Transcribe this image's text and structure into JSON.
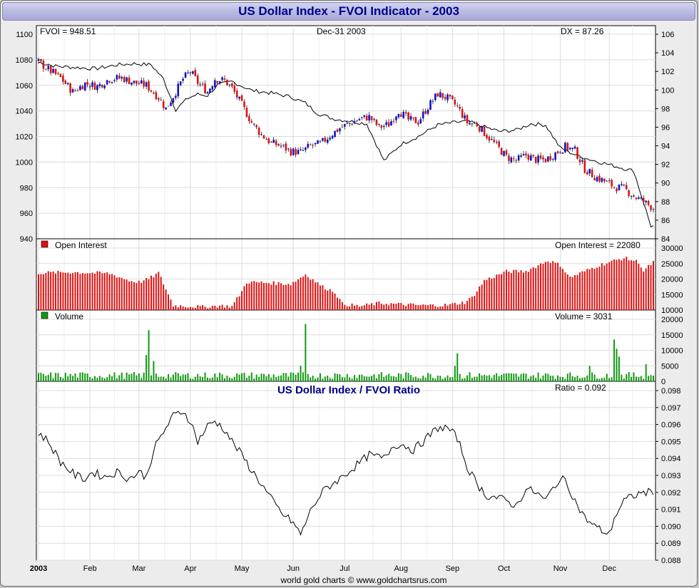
{
  "header": {
    "title": "US Dollar Index - FVOI Indicator - 2003"
  },
  "footer": {
    "credit": "world gold charts © www.goldchartsrus.com"
  },
  "panels": {
    "price": {
      "left_label": "FVOI = 948.51",
      "center_label": "Dec-31  2003",
      "right_label": "DX = 87.26"
    },
    "open_interest": {
      "legend": "Open Interest",
      "readout": "Open Interest = 22080"
    },
    "volume": {
      "legend": "Volume",
      "readout": "Volume = 3031"
    },
    "ratio": {
      "title": "US Dollar Index / FVOI Ratio",
      "readout": "Ratio = 0.092"
    }
  },
  "colors": {
    "up": "#1111cc",
    "down": "#dd1111",
    "oi": "#dd1111",
    "volume": "#119911",
    "line": "#000000",
    "grid": "#dcdcdc",
    "title": "#00008b"
  },
  "chart_data": [
    {
      "type": "line",
      "title": "US Dollar Index - FVOI Indicator - 2003",
      "x_ticks": [
        "2003",
        "Feb",
        "Mar",
        "Apr",
        "May",
        "Jun",
        "Jul",
        "Aug",
        "Sep",
        "Oct",
        "Nov",
        "Dec"
      ],
      "left_axis": {
        "ylim": [
          940,
          1100
        ],
        "ticks": [
          940,
          960,
          980,
          1000,
          1020,
          1040,
          1060,
          1080,
          1100
        ]
      },
      "right_axis": {
        "ylim": [
          84,
          106
        ],
        "ticks": [
          84,
          86,
          88,
          90,
          92,
          94,
          96,
          98,
          100,
          102,
          104,
          106
        ]
      },
      "series": [
        {
          "name": "FVOI",
          "axis": "left",
          "style": "line",
          "x": [
            1,
            8,
            16,
            24,
            33,
            40,
            47,
            52,
            57,
            62,
            66,
            70,
            74,
            80,
            88,
            96,
            104,
            110,
            115,
            121,
            128,
            135,
            142,
            149,
            156,
            164,
            171,
            176,
            182,
            189,
            196,
            202,
            208,
            214,
            221,
            228,
            236,
            244,
            251
          ],
          "values": [
            1078,
            1075,
            1074,
            1073,
            1076,
            1077,
            1076,
            1065,
            1041,
            1050,
            1053,
            1052,
            1060,
            1063,
            1056,
            1054,
            1051,
            1046,
            1038,
            1034,
            1032,
            1030,
            1001,
            1014,
            1020,
            1029,
            1031,
            1032,
            1028,
            1024,
            1025,
            1030,
            1029,
            1011,
            1005,
            1001,
            997,
            993,
            950
          ]
        },
        {
          "name": "DX",
          "axis": "right",
          "style": "candles",
          "x": [
            1,
            5,
            10,
            15,
            20,
            25,
            30,
            35,
            40,
            45,
            50,
            53,
            57,
            60,
            63,
            66,
            70,
            73,
            77,
            80,
            84,
            88,
            92,
            96,
            100,
            104,
            108,
            112,
            116,
            120,
            124,
            128,
            132,
            136,
            140,
            144,
            148,
            152,
            156,
            160,
            164,
            168,
            172,
            176,
            180,
            184,
            188,
            192,
            196,
            200,
            204,
            208,
            212,
            216,
            220,
            224,
            228,
            232,
            236,
            240,
            244,
            248,
            252
          ],
          "values": [
            103,
            102.2,
            101.3,
            99.8,
            100.7,
            100.4,
            101.2,
            101.3,
            100.8,
            100.5,
            99.2,
            98.0,
            99.8,
            101.2,
            102.0,
            100.8,
            99.8,
            101.2,
            101.0,
            100.2,
            98.4,
            96.5,
            95.2,
            94.3,
            94.0,
            93.4,
            93.3,
            94.0,
            94.2,
            95.1,
            95.9,
            96.4,
            96.9,
            97.1,
            96.0,
            96.3,
            97.8,
            96.8,
            96.6,
            98.2,
            99.6,
            99.1,
            98.2,
            96.5,
            96.3,
            95.1,
            94.0,
            92.8,
            92.4,
            93.0,
            92.5,
            92.5,
            93.2,
            93.9,
            93.5,
            91.5,
            90.7,
            90.2,
            89.6,
            89.4,
            88.6,
            88.0,
            87.3
          ]
        }
      ]
    },
    {
      "type": "bar",
      "title": "Open Interest",
      "ylim": [
        10000,
        30000
      ],
      "ticks": [
        10000,
        15000,
        20000,
        25000,
        30000
      ],
      "anchors_x": [
        1,
        15,
        30,
        38,
        42,
        46,
        50,
        56,
        68,
        75,
        80,
        84,
        86,
        95,
        104,
        110,
        117,
        122,
        125,
        132,
        140,
        150,
        158,
        168,
        175,
        178,
        183,
        192,
        200,
        209,
        214,
        218,
        230,
        240,
        246,
        248,
        252
      ],
      "anchors_y": [
        22000,
        22200,
        21800,
        19500,
        19000,
        20000,
        22000,
        11500,
        11000,
        11400,
        11200,
        16000,
        19000,
        18800,
        18400,
        21500,
        17500,
        15800,
        12000,
        11200,
        12200,
        11800,
        11500,
        11600,
        12500,
        14000,
        19500,
        22400,
        22500,
        26000,
        24500,
        20500,
        24500,
        26800,
        25500,
        22500,
        25500
      ]
    },
    {
      "type": "bar",
      "title": "Volume",
      "ylim": [
        0,
        20000
      ],
      "ticks": [
        0,
        5000,
        10000,
        15000,
        20000
      ],
      "base": [
        800,
        3000
      ],
      "spikes": [
        {
          "x": 45,
          "v": 8500
        },
        {
          "x": 46,
          "v": 16500
        },
        {
          "x": 48,
          "v": 6500
        },
        {
          "x": 110,
          "v": 18500
        },
        {
          "x": 108,
          "v": 5000
        },
        {
          "x": 172,
          "v": 9000
        },
        {
          "x": 171,
          "v": 5000
        },
        {
          "x": 236,
          "v": 13500
        },
        {
          "x": 237,
          "v": 10500
        },
        {
          "x": 238,
          "v": 8000
        },
        {
          "x": 226,
          "v": 5000
        },
        {
          "x": 249,
          "v": 5500
        }
      ]
    },
    {
      "type": "line",
      "title": "US Dollar Index / FVOI Ratio",
      "ylim": [
        0.088,
        0.098
      ],
      "ticks": [
        0.088,
        0.089,
        0.09,
        0.091,
        0.092,
        0.093,
        0.094,
        0.095,
        0.096,
        0.097,
        0.098
      ],
      "x": [
        1,
        5,
        10,
        16,
        20,
        23,
        28,
        33,
        38,
        42,
        45,
        48,
        53,
        56,
        60,
        63,
        66,
        70,
        73,
        77,
        80,
        84,
        88,
        92,
        95,
        100,
        105,
        108,
        110,
        113,
        118,
        124,
        130,
        136,
        142,
        146,
        150,
        154,
        158,
        164,
        168,
        172,
        176,
        180,
        184,
        188,
        192,
        196,
        200,
        204,
        208,
        212,
        216,
        220,
        224,
        228,
        234,
        236,
        240,
        244,
        248,
        252
      ],
      "values": [
        0.0955,
        0.095,
        0.0938,
        0.093,
        0.0928,
        0.0932,
        0.0929,
        0.0932,
        0.0928,
        0.0932,
        0.0929,
        0.0945,
        0.0958,
        0.0965,
        0.0968,
        0.0962,
        0.095,
        0.0959,
        0.0962,
        0.0957,
        0.095,
        0.0942,
        0.0933,
        0.0925,
        0.0918,
        0.0908,
        0.0902,
        0.0895,
        0.0902,
        0.0912,
        0.0922,
        0.0928,
        0.0935,
        0.0942,
        0.094,
        0.0948,
        0.0948,
        0.0945,
        0.095,
        0.0958,
        0.0958,
        0.0952,
        0.0935,
        0.0925,
        0.0918,
        0.0917,
        0.0915,
        0.0912,
        0.0922,
        0.092,
        0.0915,
        0.0925,
        0.0928,
        0.0915,
        0.0905,
        0.09,
        0.0895,
        0.0905,
        0.0915,
        0.0918,
        0.092,
        0.092
      ]
    }
  ]
}
